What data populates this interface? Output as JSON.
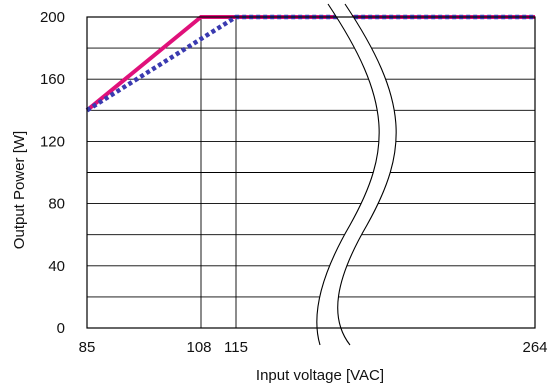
{
  "chart_data": {
    "type": "line",
    "title": "",
    "xlabel": "Input voltage [VAC]",
    "ylabel": "Output Power [W]",
    "xlim": [
      85,
      264
    ],
    "ylim": [
      0,
      200
    ],
    "x_ticks": [
      85,
      108,
      115,
      264
    ],
    "y_ticks": [
      0,
      40,
      80,
      120,
      160,
      200
    ],
    "axis_break": true,
    "grid": true,
    "series": [
      {
        "color": "#e0117a",
        "style": "solid",
        "x": [
          85,
          108,
          264
        ],
        "y": [
          140,
          200,
          200
        ]
      },
      {
        "color": "#3a3ab0",
        "style": "dotted",
        "x": [
          85,
          115,
          264
        ],
        "y": [
          140,
          200,
          200
        ]
      }
    ]
  }
}
